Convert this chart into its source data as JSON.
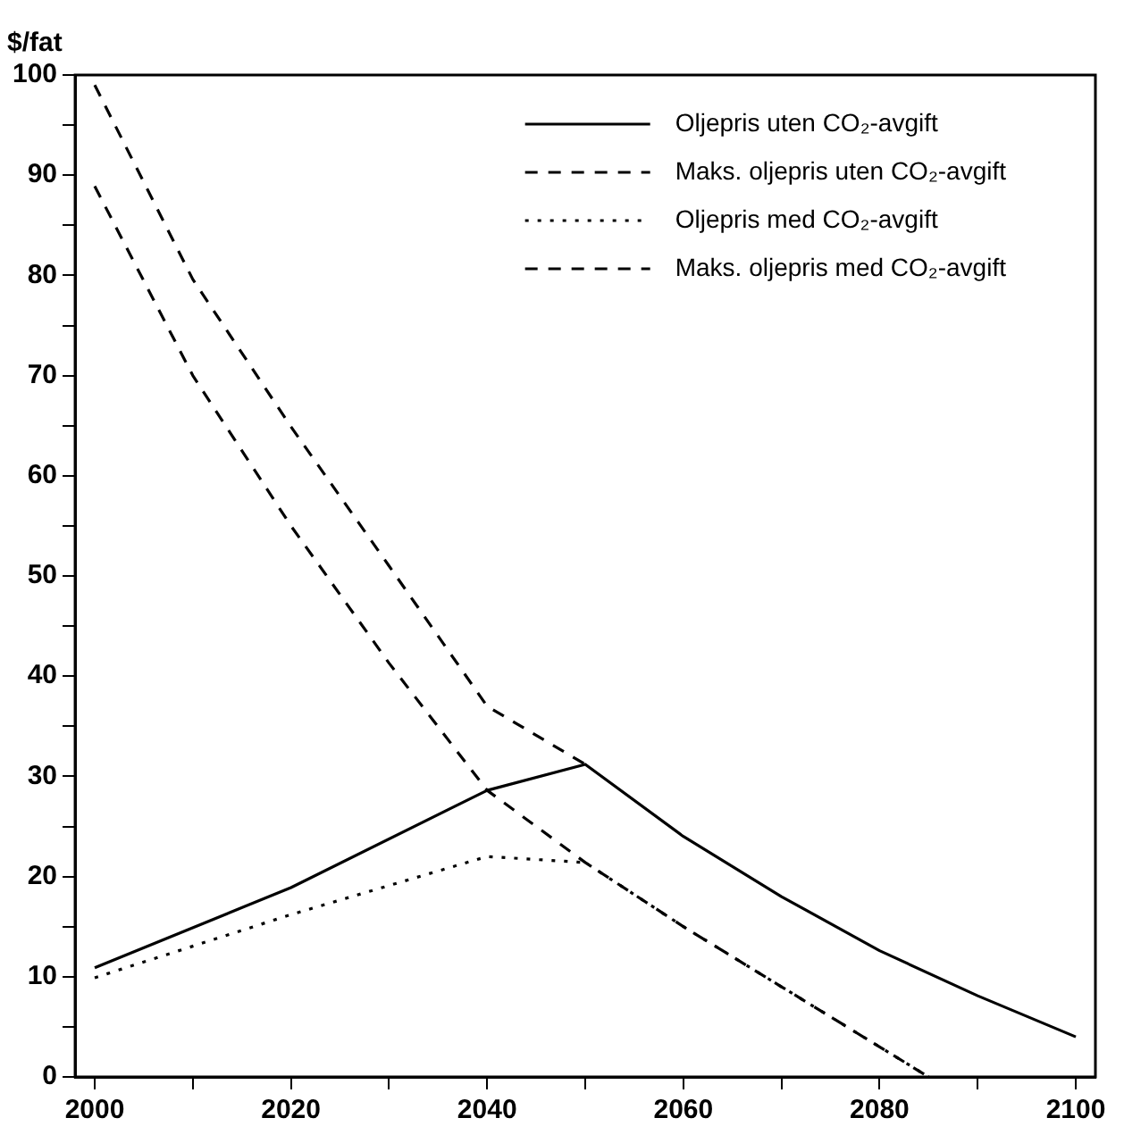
{
  "chart_data": {
    "type": "line",
    "ylabel": "$/fat",
    "xlim": [
      1998,
      2102
    ],
    "ylim": [
      0,
      100
    ],
    "xticks": [
      2000,
      {
        "value": 2010,
        "label": null
      },
      2020,
      {
        "value": 2030,
        "label": null
      },
      2040,
      {
        "value": 2050,
        "label": null
      },
      2060,
      {
        "value": 2070,
        "label": null
      },
      2080,
      {
        "value": 2090,
        "label": null
      },
      2100
    ],
    "yticks": [
      0,
      {
        "value": 5,
        "label": null
      },
      10,
      {
        "value": 15,
        "label": null
      },
      20,
      {
        "value": 25,
        "label": null
      },
      30,
      {
        "value": 35,
        "label": null
      },
      40,
      {
        "value": 45,
        "label": null
      },
      50,
      {
        "value": 55,
        "label": null
      },
      60,
      {
        "value": 65,
        "label": null
      },
      70,
      {
        "value": 75,
        "label": null
      },
      80,
      {
        "value": 85,
        "label": null
      },
      90,
      {
        "value": 95,
        "label": null
      },
      100
    ],
    "grid": false,
    "legend": "top right",
    "marker": "none",
    "series": [
      {
        "name": "Oljepris uten CO₂-avgift",
        "color": "#000000",
        "line_style": "solid",
        "x": [
          2000,
          2020,
          2040,
          2050,
          2060,
          2070,
          2080,
          2090,
          2100
        ],
        "values": [
          10.9,
          18.9,
          28.6,
          31.2,
          24,
          18,
          12.6,
          8.1,
          4
        ]
      },
      {
        "name": "Maks. oljepris uten CO₂-avgift",
        "color": "#000000",
        "line_style": "dashed",
        "x": [
          2000,
          2010,
          2020,
          2030,
          2040,
          2050
        ],
        "values": [
          99,
          79.6,
          64.9,
          51,
          37,
          31.2
        ]
      },
      {
        "name": "Oljepris med CO₂-avgift",
        "color": "#000000",
        "line_style": "dotted",
        "x": [
          2000,
          2020,
          2040,
          2050,
          2060,
          2070,
          2080,
          2085
        ],
        "values": [
          9.9,
          16.2,
          22,
          21.4,
          15,
          9,
          3,
          0
        ]
      },
      {
        "name": "Maks. oljepris med CO₂-avgift",
        "color": "#000000",
        "line_style": "dashed",
        "x": [
          2000,
          2010,
          2020,
          2030,
          2040,
          2050,
          2060,
          2070,
          2080,
          2085
        ],
        "values": [
          88.9,
          70,
          55,
          41.3,
          28.6,
          21.4,
          15,
          9,
          3,
          0
        ]
      }
    ]
  }
}
